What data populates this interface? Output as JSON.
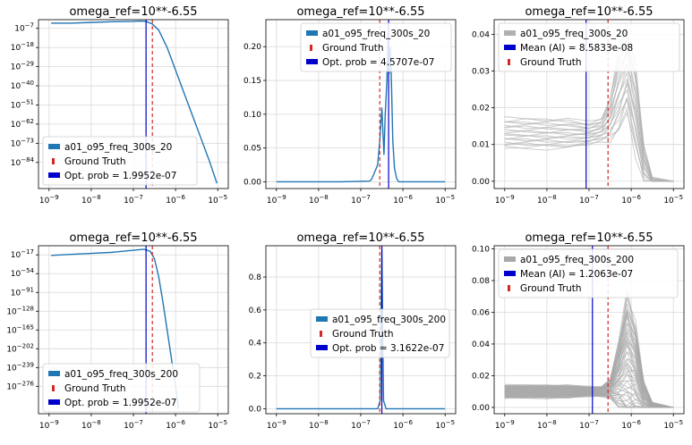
{
  "figure": {
    "layout": "2x3 grid of subplots"
  },
  "chart_data": [
    {
      "type": "line",
      "title": "omega_ref=10**-6.55",
      "xscale": "log",
      "xlim": [
        1e-09,
        1e-05
      ],
      "yscale": "log",
      "xticks": [
        "10^-9",
        "10^-8",
        "10^-7",
        "10^-6",
        "10^-5"
      ],
      "yticks": [
        "10^-7",
        "10^-18",
        "10^-29",
        "10^-40",
        "10^-51",
        "10^-62",
        "10^-73",
        "10^-84"
      ],
      "series": [
        {
          "name": "a01_o95_freq_300s_20",
          "color": "#1f77b4",
          "x_exp": [
            -8.95,
            -8.5,
            -8.0,
            -7.5,
            -7.0,
            -6.85,
            -6.7,
            -6.55,
            -6.4,
            -6.2,
            -6.0,
            -5.8,
            -5.6,
            -5.4,
            -5.2,
            -5.02
          ],
          "y_exp": [
            -4.0,
            -4.0,
            -3.6,
            -3.2,
            -3.0,
            -2.8,
            -3.0,
            -4.5,
            -8.0,
            -18.0,
            -31.0,
            -44.0,
            -57.0,
            -70.0,
            -83.0,
            -96.0
          ]
        }
      ],
      "vlines": [
        {
          "label": "Ground Truth",
          "x_exp": -6.55,
          "color": "#d62728",
          "style": "dashed"
        },
        {
          "label": "Opt. prob = 1.9952e-07",
          "x_exp": -6.7,
          "color": "#0000cc",
          "style": "solid"
        }
      ],
      "legend": {
        "position": "lower-left",
        "entries": [
          "a01_o95_freq_300s_20",
          "Ground Truth",
          "Opt. prob = 1.9952e-07"
        ]
      }
    },
    {
      "type": "line",
      "title": "omega_ref=10**-6.55",
      "xscale": "log",
      "xlim": [
        1e-09,
        1e-05
      ],
      "ylim": [
        -0.01,
        0.24
      ],
      "xticks": [
        "10^-9",
        "10^-8",
        "10^-7",
        "10^-6",
        "10^-5"
      ],
      "yticks": [
        "0.00",
        "0.05",
        "0.10",
        "0.15",
        "0.20"
      ],
      "series": [
        {
          "name": "a01_o95_freq_300s_20",
          "color": "#1f77b4",
          "x_exp": [
            -9.0,
            -7.5,
            -6.8,
            -6.75,
            -6.7,
            -6.6,
            -6.55,
            -6.5,
            -6.45,
            -6.42,
            -6.38,
            -6.35,
            -6.33,
            -6.3,
            -6.27,
            -6.24,
            -6.2,
            -6.15,
            -6.1,
            -5.5,
            -5.0
          ],
          "y": [
            0,
            0,
            0.001,
            0.003,
            0.01,
            0.025,
            0.06,
            0.11,
            0.04,
            0.1,
            0.15,
            0.22,
            0.16,
            0.2,
            0.14,
            0.06,
            0.02,
            0.005,
            0,
            0,
            0
          ]
        }
      ],
      "vlines": [
        {
          "label": "Ground Truth",
          "x_exp": -6.55,
          "color": "#d62728",
          "style": "dashed"
        },
        {
          "label": "Opt. prob = 4.5707e-07",
          "x_exp": -6.34,
          "color": "#0000cc",
          "style": "solid"
        }
      ],
      "legend": {
        "position": "upper-right",
        "entries": [
          "a01_o95_freq_300s_20",
          "Ground Truth",
          "Opt. prob = 4.5707e-07"
        ]
      }
    },
    {
      "type": "line",
      "title": "omega_ref=10**-6.55",
      "xscale": "log",
      "xlim": [
        1e-09,
        1e-05
      ],
      "ylim": [
        -0.002,
        0.044
      ],
      "xticks": [
        "10^-9",
        "10^-8",
        "10^-7",
        "10^-6",
        "10^-5"
      ],
      "yticks": [
        "0.00",
        "0.01",
        "0.02",
        "0.03",
        "0.04"
      ],
      "series": [
        {
          "name": "a01_o95_freq_300s_20",
          "color": "#b0b0b0",
          "n_lines": 20,
          "x_exp": [
            -9.0,
            -8.5,
            -8.0,
            -7.5,
            -7.0,
            -6.7,
            -6.5,
            -6.3,
            -6.1,
            -5.9,
            -5.7,
            -5.5,
            -5.0
          ],
          "y_base": [
            0.013,
            0.013,
            0.013,
            0.013,
            0.013,
            0.014,
            0.017,
            0.024,
            0.03,
            0.02,
            0.005,
            0,
            0
          ],
          "y_spread": [
            0.004,
            0.004,
            0.004,
            0.004,
            0.003,
            0.003,
            0.006,
            0.011,
            0.011,
            0.012,
            0.005,
            0.001,
            0
          ]
        }
      ],
      "vlines": [
        {
          "label": "Mean (AI) = 8.5833e-08",
          "x_exp": -7.07,
          "color": "#0000cc",
          "style": "solid"
        },
        {
          "label": "Ground Truth",
          "x_exp": -6.55,
          "color": "#d62728",
          "style": "dashed"
        }
      ],
      "legend": {
        "position": "upper-right",
        "entries": [
          "a01_o95_freq_300s_20",
          "Mean (AI) = 8.5833e-08",
          "Ground Truth"
        ]
      }
    },
    {
      "type": "line",
      "title": "omega_ref=10**-6.55",
      "xscale": "log",
      "xlim": [
        1e-09,
        1e-05
      ],
      "yscale": "log",
      "xticks": [
        "10^-9",
        "10^-8",
        "10^-7",
        "10^-6",
        "10^-5"
      ],
      "yticks": [
        "10^-17",
        "10^-54",
        "10^-91",
        "10^-128",
        "10^-165",
        "10^-202",
        "10^-239",
        "10^-276"
      ],
      "series": [
        {
          "name": "a01_o95_freq_300s_200",
          "color": "#1f77b4",
          "x_exp": [
            -8.95,
            -8.5,
            -8.0,
            -7.5,
            -7.0,
            -6.75,
            -6.6,
            -6.5,
            -6.4,
            -6.3,
            -6.2,
            -6.1,
            -6.0,
            -5.93
          ],
          "y_exp": [
            -18.0,
            -16.0,
            -14.0,
            -12.0,
            -8.0,
            -6.0,
            -10.0,
            -25.0,
            -60.0,
            -110.0,
            -165.0,
            -220.0,
            -275.0,
            -320.0
          ]
        }
      ],
      "vlines": [
        {
          "label": "Ground Truth",
          "x_exp": -6.55,
          "color": "#d62728",
          "style": "dashed"
        },
        {
          "label": "Opt. prob = 1.9952e-07",
          "x_exp": -6.7,
          "color": "#0000cc",
          "style": "solid"
        }
      ],
      "legend": {
        "position": "lower-left",
        "entries": [
          "a01_o95_freq_300s_200",
          "Ground Truth",
          "Opt. prob = 1.9952e-07"
        ]
      }
    },
    {
      "type": "line",
      "title": "omega_ref=10**-6.55",
      "xscale": "log",
      "xlim": [
        1e-09,
        1e-05
      ],
      "ylim": [
        -0.03,
        0.99
      ],
      "xticks": [
        "10^-9",
        "10^-8",
        "10^-7",
        "10^-6",
        "10^-5"
      ],
      "yticks": [
        "0.0",
        "0.2",
        "0.4",
        "0.6",
        "0.8"
      ],
      "series": [
        {
          "name": "a01_o95_freq_300s_200",
          "color": "#1f77b4",
          "x_exp": [
            -9.0,
            -6.6,
            -6.54,
            -6.52,
            -6.5,
            -6.48,
            -6.46,
            -6.4,
            -5.0
          ],
          "y": [
            0,
            0,
            0.05,
            0.5,
            0.97,
            0.5,
            0.05,
            0,
            0
          ]
        }
      ],
      "vlines": [
        {
          "label": "Ground Truth",
          "x_exp": -6.55,
          "color": "#d62728",
          "style": "dashed"
        },
        {
          "label": "Opt. prob = 3.1622e-07",
          "x_exp": -6.5,
          "color": "#0000cc",
          "style": "solid"
        }
      ],
      "legend": {
        "position": "center-right",
        "entries": [
          "a01_o95_freq_300s_200",
          "Ground Truth",
          "Opt. prob = 3.1622e-07"
        ]
      }
    },
    {
      "type": "line",
      "title": "omega_ref=10**-6.55",
      "xscale": "log",
      "xlim": [
        1e-09,
        1e-05
      ],
      "ylim": [
        -0.004,
        0.102
      ],
      "xticks": [
        "10^-9",
        "10^-8",
        "10^-7",
        "10^-6",
        "10^-5"
      ],
      "yticks": [
        "0.00",
        "0.02",
        "0.04",
        "0.06",
        "0.08",
        "0.10"
      ],
      "series": [
        {
          "name": "a01_o95_freq_300s_200",
          "color": "#a8a8a8",
          "n_lines": 50,
          "x_exp": [
            -9.0,
            -8.5,
            -8.0,
            -7.5,
            -7.0,
            -6.7,
            -6.5,
            -6.3,
            -6.1,
            -5.9,
            -5.7,
            -5.5,
            -5.0
          ],
          "y_base": [
            0.01,
            0.01,
            0.01,
            0.01,
            0.01,
            0.01,
            0.012,
            0.02,
            0.03,
            0.022,
            0.006,
            0.001,
            0
          ],
          "y_spread": [
            0.004,
            0.004,
            0.004,
            0.004,
            0.003,
            0.003,
            0.006,
            0.02,
            0.04,
            0.03,
            0.01,
            0.002,
            0
          ]
        }
      ],
      "vlines": [
        {
          "label": "Mean (AI) = 1.2063e-07",
          "x_exp": -6.92,
          "color": "#0000cc",
          "style": "solid"
        },
        {
          "label": "Ground Truth",
          "x_exp": -6.55,
          "color": "#d62728",
          "style": "dashed"
        }
      ],
      "legend": {
        "position": "upper-left",
        "entries": [
          "a01_o95_freq_300s_200",
          "Mean (AI) = 1.2063e-07",
          "Ground Truth"
        ]
      }
    }
  ]
}
